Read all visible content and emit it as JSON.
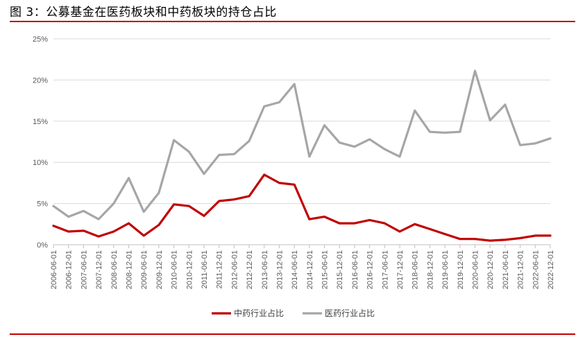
{
  "title": "图 3：公募基金在医药板块和中药板块的持仓占比",
  "chart_data": {
    "type": "line",
    "x": [
      "2006-06-01",
      "2006-12-01",
      "2007-06-01",
      "2007-12-01",
      "2008-06-01",
      "2008-12-01",
      "2009-06-01",
      "2009-12-01",
      "2010-06-01",
      "2010-12-01",
      "2011-06-01",
      "2011-12-01",
      "2012-06-01",
      "2012-12-01",
      "2013-06-01",
      "2013-12-01",
      "2014-06-01",
      "2014-12-01",
      "2015-06-01",
      "2015-12-01",
      "2016-06-01",
      "2016-12-01",
      "2017-06-01",
      "2017-12-01",
      "2018-06-01",
      "2018-12-01",
      "2019-06-01",
      "2019-12-01",
      "2020-06-01",
      "2020-12-01",
      "2021-06-01",
      "2021-12-01",
      "2022-06-01",
      "2022-12-01"
    ],
    "yticks": [
      "0%",
      "5%",
      "10%",
      "15%",
      "20%",
      "25%"
    ],
    "ylim": [
      0,
      25
    ],
    "grid": true,
    "legend_position": "bottom",
    "series": [
      {
        "name": "中药行业占比",
        "color": "#c00000",
        "values": [
          2.3,
          1.6,
          1.7,
          1.0,
          1.6,
          2.6,
          1.1,
          2.4,
          4.9,
          4.7,
          3.5,
          5.3,
          5.5,
          5.9,
          8.5,
          7.5,
          7.3,
          3.1,
          3.4,
          2.6,
          2.6,
          3.0,
          2.6,
          1.6,
          2.5,
          1.9,
          1.3,
          0.7,
          0.7,
          0.5,
          0.6,
          0.8,
          1.1,
          1.1
        ]
      },
      {
        "name": "医药行业占比",
        "color": "#a6a6a6",
        "values": [
          4.7,
          3.4,
          4.1,
          3.1,
          5.0,
          8.1,
          4.0,
          6.3,
          12.7,
          11.3,
          8.6,
          10.9,
          11.0,
          12.6,
          16.8,
          17.3,
          19.5,
          10.7,
          14.5,
          12.4,
          11.9,
          12.8,
          11.6,
          10.7,
          16.3,
          13.7,
          13.6,
          13.7,
          21.1,
          15.1,
          17.0,
          12.1,
          12.3,
          12.9
        ]
      }
    ]
  }
}
